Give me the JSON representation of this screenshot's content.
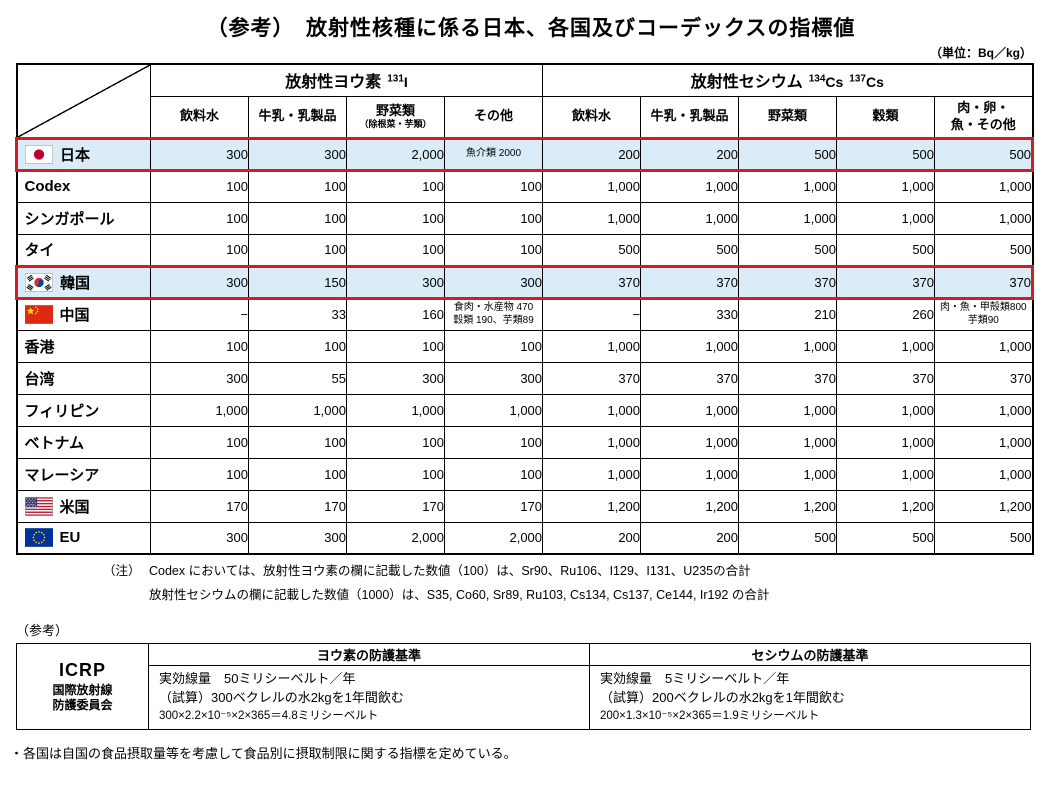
{
  "title": "（参考）　放射性核種に係る日本、各国及びコーデックスの指標値",
  "unit_note": "（単位：Bq／kg）",
  "table": {
    "groups": [
      {
        "label": "放射性ヨウ素",
        "nuclides": [
          {
            "mass": "131",
            "symbol": "I"
          }
        ]
      },
      {
        "label": "放射性セシウム",
        "nuclides": [
          {
            "mass": "134",
            "symbol": "Cs"
          },
          {
            "mass": "137",
            "symbol": "Cs"
          }
        ]
      }
    ],
    "column_headers": [
      {
        "main": "飲料水",
        "sub": ""
      },
      {
        "main": "牛乳・乳製品",
        "sub": ""
      },
      {
        "main": "野菜類",
        "sub": "（除根菜・芋類）"
      },
      {
        "main": "その他",
        "sub": ""
      },
      {
        "main": "飲料水",
        "sub": ""
      },
      {
        "main": "牛乳・乳製品",
        "sub": ""
      },
      {
        "main": "野菜類",
        "sub": ""
      },
      {
        "main": "穀類",
        "sub": ""
      },
      {
        "main": "肉・卵・\n魚・その他",
        "sub": ""
      }
    ],
    "rows": [
      {
        "country": "日本",
        "flag": "japan",
        "highlighted": true,
        "values": [
          "300",
          "300",
          "2,000",
          "魚介類 2000",
          "200",
          "200",
          "500",
          "500",
          "500"
        ]
      },
      {
        "country": "Codex",
        "flag": null,
        "highlighted": false,
        "values": [
          "100",
          "100",
          "100",
          "100",
          "1,000",
          "1,000",
          "1,000",
          "1,000",
          "1,000"
        ]
      },
      {
        "country": "シンガポール",
        "flag": null,
        "highlighted": false,
        "values": [
          "100",
          "100",
          "100",
          "100",
          "1,000",
          "1,000",
          "1,000",
          "1,000",
          "1,000"
        ]
      },
      {
        "country": "タイ",
        "flag": null,
        "highlighted": false,
        "values": [
          "100",
          "100",
          "100",
          "100",
          "500",
          "500",
          "500",
          "500",
          "500"
        ]
      },
      {
        "country": "韓国",
        "flag": "korea",
        "highlighted": true,
        "values": [
          "300",
          "150",
          "300",
          "300",
          "370",
          "370",
          "370",
          "370",
          "370"
        ]
      },
      {
        "country": "中国",
        "flag": "china",
        "highlighted": false,
        "values": [
          "−",
          "33",
          "160",
          "食肉・水産物 470\n穀類 190、芋類89",
          "−",
          "330",
          "210",
          "260",
          "肉・魚・甲殻類800\n芋類90"
        ]
      },
      {
        "country": "香港",
        "flag": null,
        "highlighted": false,
        "values": [
          "100",
          "100",
          "100",
          "100",
          "1,000",
          "1,000",
          "1,000",
          "1,000",
          "1,000"
        ]
      },
      {
        "country": "台湾",
        "flag": null,
        "highlighted": false,
        "values": [
          "300",
          "55",
          "300",
          "300",
          "370",
          "370",
          "370",
          "370",
          "370"
        ]
      },
      {
        "country": "フィリピン",
        "flag": null,
        "highlighted": false,
        "values": [
          "1,000",
          "1,000",
          "1,000",
          "1,000",
          "1,000",
          "1,000",
          "1,000",
          "1,000",
          "1,000"
        ]
      },
      {
        "country": "ベトナム",
        "flag": null,
        "highlighted": false,
        "values": [
          "100",
          "100",
          "100",
          "100",
          "1,000",
          "1,000",
          "1,000",
          "1,000",
          "1,000"
        ]
      },
      {
        "country": "マレーシア",
        "flag": null,
        "highlighted": false,
        "values": [
          "100",
          "100",
          "100",
          "100",
          "1,000",
          "1,000",
          "1,000",
          "1,000",
          "1,000"
        ]
      },
      {
        "country": "米国",
        "flag": "usa",
        "highlighted": false,
        "values": [
          "170",
          "170",
          "170",
          "170",
          "1,200",
          "1,200",
          "1,200",
          "1,200",
          "1,200"
        ]
      },
      {
        "country": "EU",
        "flag": "eu",
        "highlighted": false,
        "values": [
          "300",
          "300",
          "2,000",
          "2,000",
          "200",
          "200",
          "500",
          "500",
          "500"
        ]
      }
    ]
  },
  "notes": {
    "label": "（注）",
    "lines": [
      "Codex においては、放射性ヨウ素の欄に記載した数値（100）は、Sr90、Ru106、I129、I131、U235の合計",
      "放射性セシウムの欄に記載した数値（1000）は、S35, Co60, Sr89, Ru103, Cs134, Cs137, Ce144, Ir192 の合計"
    ]
  },
  "reference": {
    "label": "（参考）",
    "org": {
      "abbr": "ICRP",
      "name": "国際放射線\n防護委員会"
    },
    "iodine": {
      "header": "ヨウ素の防護基準",
      "lines": [
        "実効線量　50ミリシーベルト／年",
        "（試算）300ベクレルの水2kgを1年間飲む",
        "300×2.2×10⁻⁵×2×365＝4.8ミリシーベルト"
      ]
    },
    "cesium": {
      "header": "セシウムの防護基準",
      "lines": [
        "実効線量　5ミリシーベルト／年",
        "（試算）200ベクレルの水2kgを1年間飲む",
        "200×1.3×10⁻⁵×2×365＝1.9ミリシーベルト"
      ]
    }
  },
  "footer_note": "・各国は自国の食品摂取量等を考慮して食品別に摂取制限に関する指標を定めている。"
}
